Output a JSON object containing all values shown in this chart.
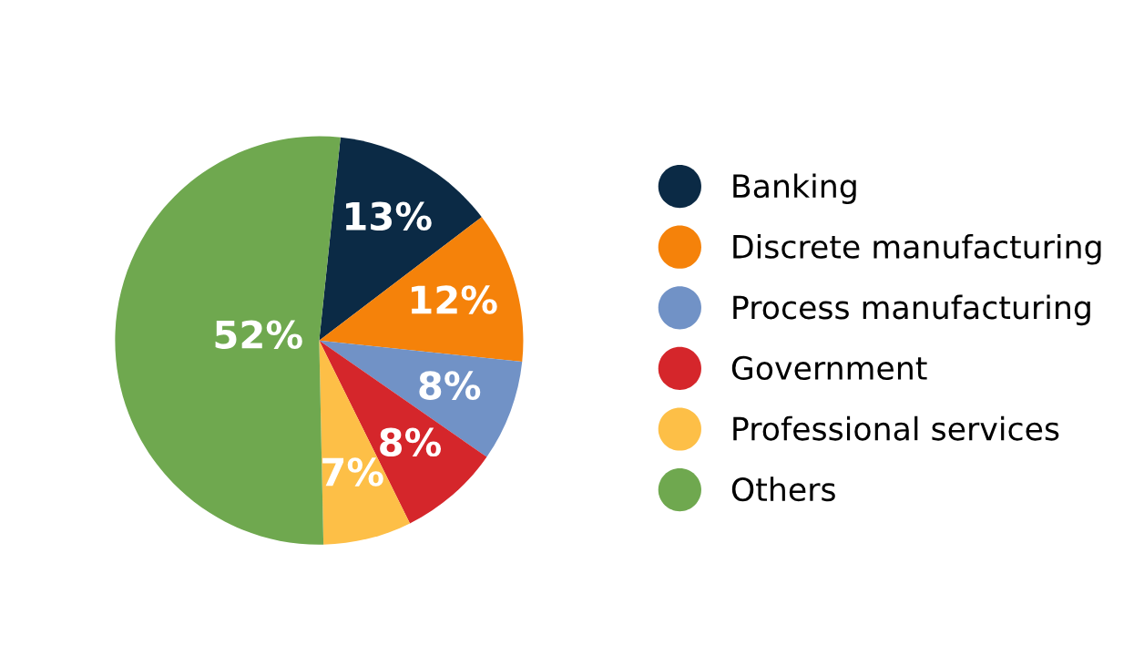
{
  "chart_data": {
    "type": "pie",
    "categories": [
      "Banking",
      "Discrete manufacturing",
      "Process manufacturing",
      "Government",
      "Professional services",
      "Others"
    ],
    "values": [
      13,
      12,
      8,
      8,
      7,
      52
    ],
    "colors": [
      "#0b2a45",
      "#f5820a",
      "#7192c6",
      "#d5262b",
      "#fdbf47",
      "#6fa84f"
    ],
    "value_labels": [
      "13%",
      "12%",
      "8%",
      "8%",
      "7%",
      "52%"
    ],
    "legend": "right"
  }
}
